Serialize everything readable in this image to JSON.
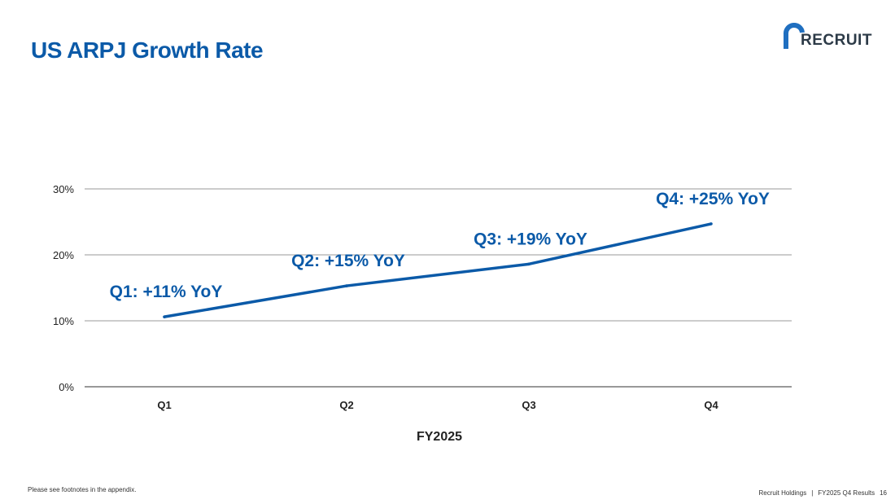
{
  "page": {
    "title": "US ARPJ Growth Rate",
    "logo_text": "RECRUIT",
    "footnote": "Please see footnotes in the appendix.",
    "footer_company": "Recruit Holdings",
    "footer_separator": "|",
    "footer_report": "FY2025 Q4  Results",
    "page_number": "16"
  },
  "colors": {
    "accent": "#0b5aa8",
    "line": "#0b5aa8",
    "grid": "#9a9a9a",
    "axis_text": "#222222",
    "logo_arc": "#1f6fc0"
  },
  "chart_data": {
    "type": "line",
    "title": "US ARPJ Growth Rate",
    "xlabel": "FY2025",
    "ylabel": "",
    "categories": [
      "Q1",
      "Q2",
      "Q3",
      "Q4"
    ],
    "series": [
      {
        "values": [
          10.6,
          15.3,
          18.6,
          24.7
        ]
      }
    ],
    "annotations": [
      "Q1: +11% YoY",
      "Q2: +15% YoY",
      "Q3: +19% YoY",
      "Q4: +25% YoY"
    ],
    "ylim": [
      0,
      30
    ],
    "yticks": [
      0,
      10,
      20,
      30
    ],
    "ytick_labels": [
      "0%",
      "10%",
      "20%",
      "30%"
    ],
    "grid": true,
    "legend": "none"
  }
}
